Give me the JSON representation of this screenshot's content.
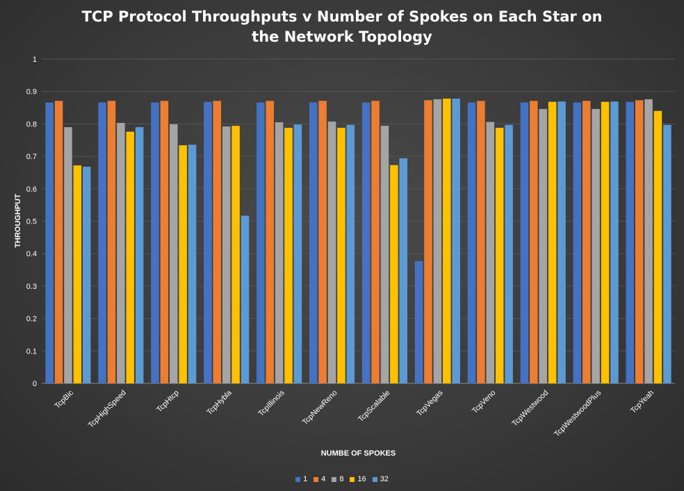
{
  "chart_data": {
    "type": "bar",
    "title": "TCP Protocol Throughputs v Number of Spokes on Each Star on the Network Topology",
    "xlabel": "NUMBE OF SPOKES",
    "ylabel": "THROUGHPUT",
    "ylim": [
      0,
      1
    ],
    "yticks": [
      "0",
      "0.1",
      "0.2",
      "0.3",
      "0.4",
      "0.5",
      "0.6",
      "0.7",
      "0.8",
      "0.9",
      "1"
    ],
    "grid": true,
    "legend_position": "bottom",
    "categories": [
      "TcpBic",
      "TcpHighSpeed",
      "TcpHtcp",
      "TcpHybla",
      "TcpIllinois",
      "TcpNewReno",
      "TcpScalable",
      "TcpVegas",
      "TcpVeno",
      "TcpWestwood",
      "TcpWestwoodPlus",
      "TcpYeah"
    ],
    "series": [
      {
        "name": "1",
        "color": "#4472c4",
        "values": [
          0.866,
          0.866,
          0.866,
          0.868,
          0.866,
          0.866,
          0.866,
          0.377,
          0.866,
          0.866,
          0.866,
          0.868
        ]
      },
      {
        "name": "4",
        "color": "#ed7d31",
        "values": [
          0.871,
          0.871,
          0.871,
          0.871,
          0.871,
          0.871,
          0.871,
          0.873,
          0.871,
          0.871,
          0.871,
          0.873
        ]
      },
      {
        "name": "8",
        "color": "#a5a5a5",
        "values": [
          0.79,
          0.803,
          0.799,
          0.792,
          0.805,
          0.807,
          0.794,
          0.876,
          0.806,
          0.846,
          0.846,
          0.876
        ]
      },
      {
        "name": "16",
        "color": "#ffc000",
        "values": [
          0.672,
          0.776,
          0.734,
          0.794,
          0.788,
          0.788,
          0.673,
          0.878,
          0.788,
          0.868,
          0.868,
          0.84
        ]
      },
      {
        "name": "32",
        "color": "#5b9bd5",
        "values": [
          0.668,
          0.79,
          0.736,
          0.517,
          0.798,
          0.797,
          0.694,
          0.878,
          0.797,
          0.869,
          0.869,
          0.797
        ]
      }
    ]
  }
}
